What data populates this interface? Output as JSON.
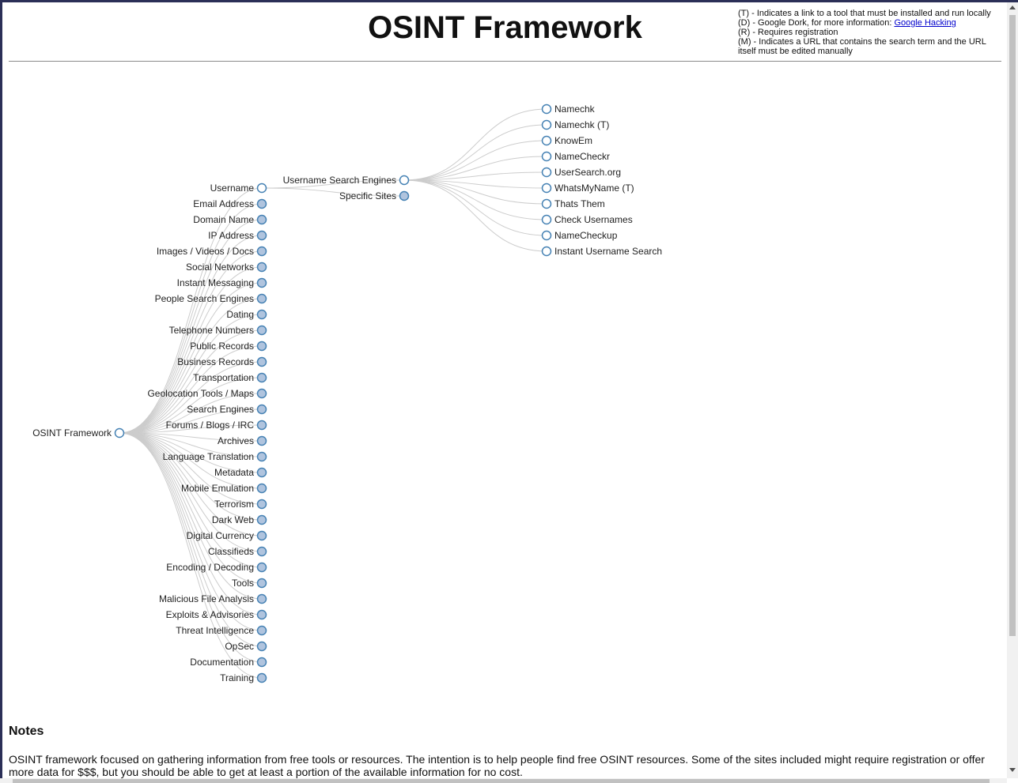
{
  "header": {
    "title": "OSINT Framework",
    "legend": {
      "tool": "(T) - Indicates a link to a tool that must be installed and run locally",
      "dork_prefix": "(D) - Google Dork, for more information: ",
      "dork_link": "Google Hacking",
      "registration": "(R) - Requires registration",
      "manual": "(M) - Indicates a URL that contains the search term and the URL itself must be edited manually"
    }
  },
  "tree": {
    "root": "OSINT Framework",
    "categories": [
      "Username",
      "Email Address",
      "Domain Name",
      "IP Address",
      "Images / Videos / Docs",
      "Social Networks",
      "Instant Messaging",
      "People Search Engines",
      "Dating",
      "Telephone Numbers",
      "Public Records",
      "Business Records",
      "Transportation",
      "Geolocation Tools / Maps",
      "Search Engines",
      "Forums / Blogs / IRC",
      "Archives",
      "Language Translation",
      "Metadata",
      "Mobile Emulation",
      "Terrorism",
      "Dark Web",
      "Digital Currency",
      "Classifieds",
      "Encoding / Decoding",
      "Tools",
      "Malicious File Analysis",
      "Exploits & Advisories",
      "Threat Intelligence",
      "OpSec",
      "Documentation",
      "Training"
    ],
    "username_children": [
      "Username Search Engines",
      "Specific Sites"
    ],
    "engines": [
      "Namechk",
      "Namechk (T)",
      "KnowEm",
      "NameCheckr",
      "UserSearch.org",
      "WhatsMyName (T)",
      "Thats Them",
      "Check Usernames",
      "NameCheckup",
      "Instant Username Search"
    ],
    "colors": {
      "stroke": "#4682b4",
      "collapsed_fill": "#b0c4de",
      "expanded_fill": "#ffffff",
      "link": "#cccccc"
    }
  },
  "notes": {
    "title": "Notes",
    "text": "OSINT framework focused on gathering information from free tools or resources. The intention is to help people find free OSINT resources. Some of the sites included might require registration or offer more data for $$$, but you should be able to get at least a portion of the available information for no cost."
  }
}
